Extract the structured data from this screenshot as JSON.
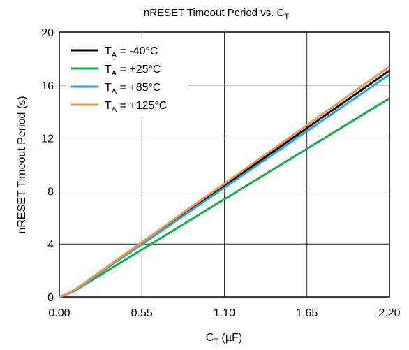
{
  "chart_data": {
    "type": "line",
    "title": {
      "main": "nRESET Timeout Period vs. C",
      "sub": "T"
    },
    "xlabel": {
      "main": "C",
      "sub": "T",
      "rest": " (µF)"
    },
    "ylabel": "nRESET Timeout Period  (s)",
    "xlim": [
      0,
      2.2
    ],
    "ylim": [
      0,
      20
    ],
    "xticks": [
      0,
      0.55,
      1.1,
      1.65,
      2.2
    ],
    "xtick_labels": [
      "0.00",
      "0.55",
      "1.10",
      "1.65",
      "2.20"
    ],
    "yticks": [
      0,
      4,
      8,
      12,
      16,
      20
    ],
    "ytick_labels": [
      "0",
      "4",
      "8",
      "12",
      "16",
      "20"
    ],
    "grid": true,
    "legend_position": "top-left",
    "series": [
      {
        "name_main": "T",
        "name_sub": "A",
        "name_rest": " = -40°C",
        "color": "#000000",
        "x": [
          0,
          0.05,
          0.1,
          2.2
        ],
        "y": [
          0,
          0.22,
          0.5,
          17.1
        ]
      },
      {
        "name_main": "T",
        "name_sub": "A",
        "name_rest": " = +25°C",
        "color": "#1aaa4a",
        "x": [
          0,
          0.05,
          0.1,
          2.2
        ],
        "y": [
          0,
          0.2,
          0.45,
          15.0
        ]
      },
      {
        "name_main": "T",
        "name_sub": "A",
        "name_rest": " = +85°C",
        "color": "#22a8e0",
        "x": [
          0,
          0.05,
          0.1,
          2.2
        ],
        "y": [
          0,
          0.22,
          0.48,
          16.8
        ]
      },
      {
        "name_main": "T",
        "name_sub": "A",
        "name_rest": " = +125°C",
        "color": "#f0954a",
        "x": [
          0,
          0.05,
          0.1,
          2.2
        ],
        "y": [
          0,
          0.23,
          0.52,
          17.4
        ]
      }
    ]
  }
}
